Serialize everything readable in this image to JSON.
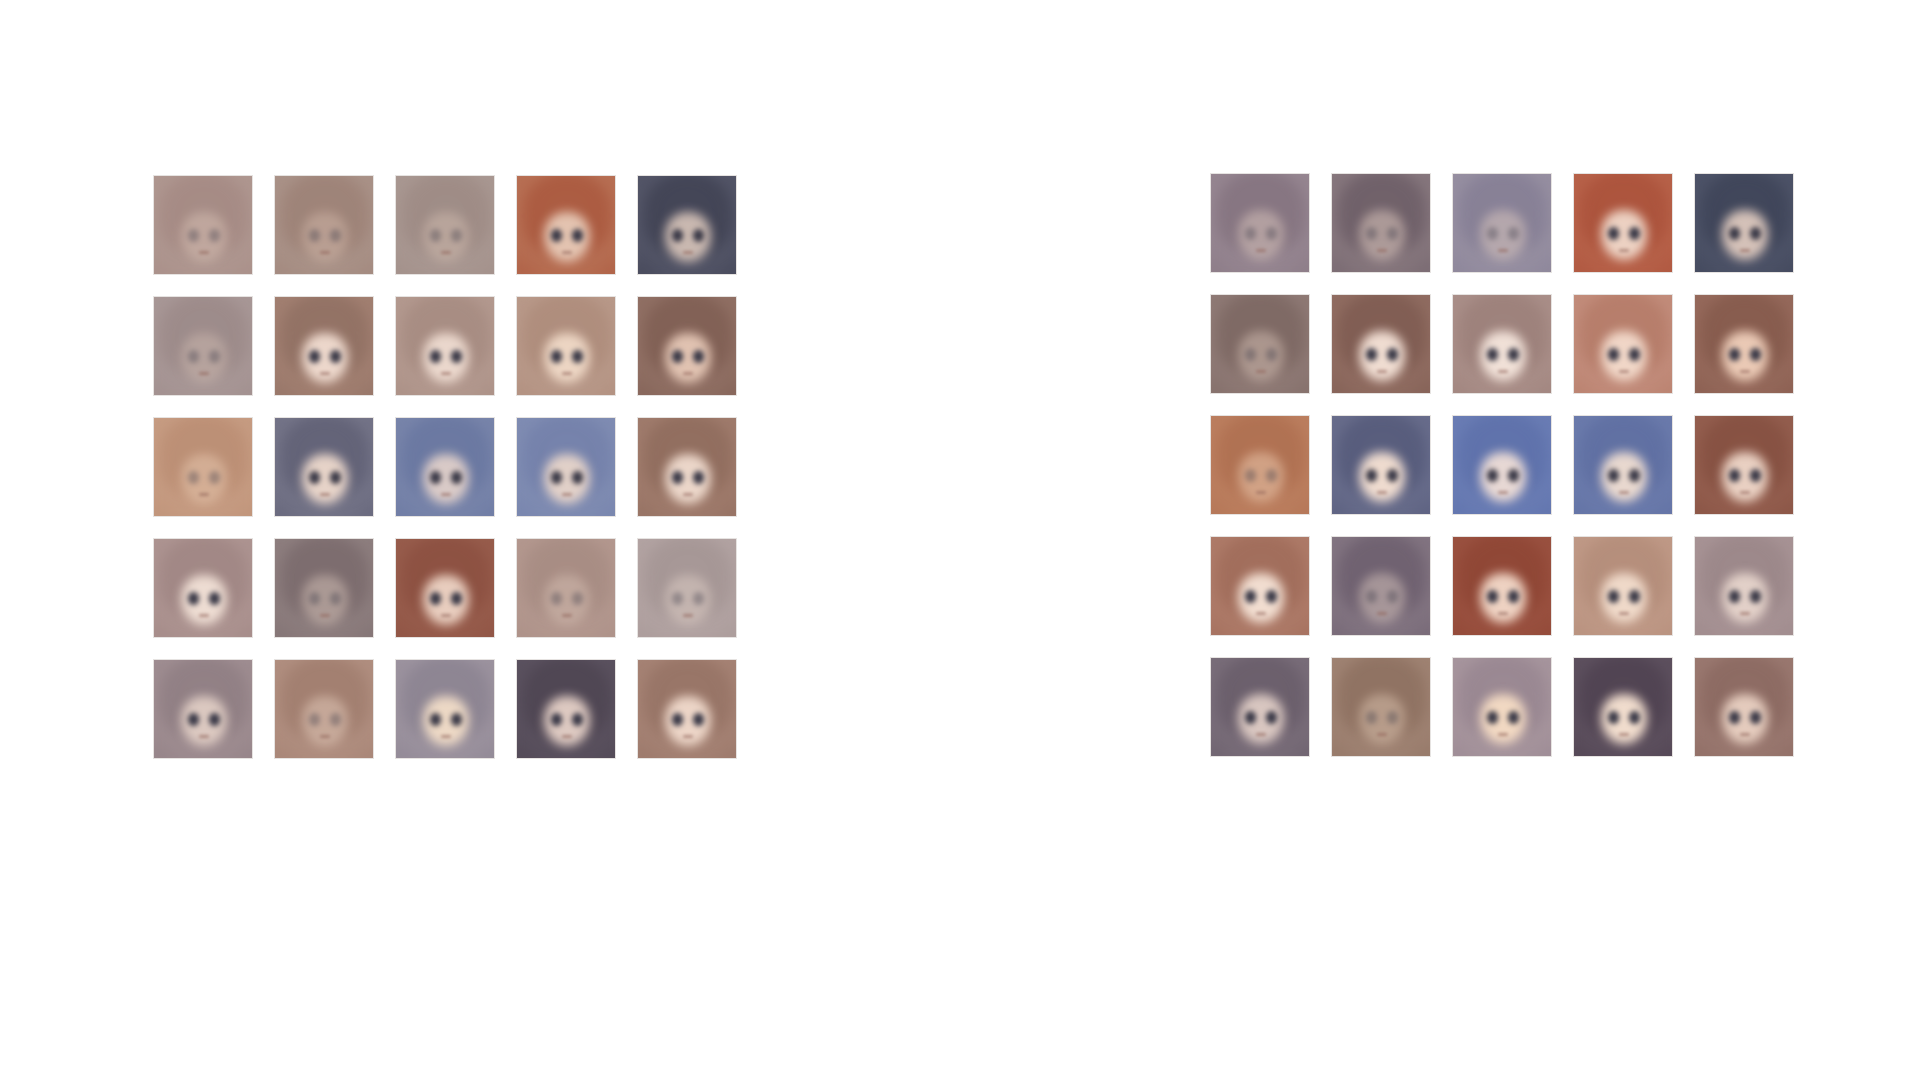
{
  "grids": [
    {
      "tiles": [
        {
          "bg": "#b9a59d",
          "hair": "#a68b85",
          "face": "#d4bdb1",
          "clear": false
        },
        {
          "bg": "#b7a49b",
          "hair": "#9e8378",
          "face": "#cdb3a5",
          "clear": false
        },
        {
          "bg": "#b4a59f",
          "hair": "#9f8c86",
          "face": "#cdb8ac",
          "clear": false
        },
        {
          "bg": "#c98e71",
          "hair": "#a9573d",
          "face": "#e3c3b0",
          "clear": true
        },
        {
          "bg": "#6d6f82",
          "hair": "#3f4152",
          "face": "#c9b8b0",
          "clear": true
        },
        {
          "bg": "#b5a6a5",
          "hair": "#9d8b8a",
          "face": "#c9b5ac",
          "clear": false
        },
        {
          "bg": "#b99484",
          "hair": "#8f6f62",
          "face": "#ecd7cb",
          "clear": true
        },
        {
          "bg": "#c4aba1",
          "hair": "#a58a80",
          "face": "#ead7cc",
          "clear": true
        },
        {
          "bg": "#c6aa9c",
          "hair": "#ad8b7a",
          "face": "#ecd5c3",
          "clear": true
        },
        {
          "bg": "#a7877b",
          "hair": "#7e5d52",
          "face": "#e0c2b1",
          "clear": true
        },
        {
          "bg": "#d2ab92",
          "hair": "#bc8f75",
          "face": "#e6c6ad",
          "clear": false
        },
        {
          "bg": "#8e8ea0",
          "hair": "#5f5f74",
          "face": "#e6d3c8",
          "clear": true
        },
        {
          "bg": "#8c96b6",
          "hair": "#6876a0",
          "face": "#d9cac7",
          "clear": true
        },
        {
          "bg": "#8f9bbc",
          "hair": "#7380aa",
          "face": "#e1d0c8",
          "clear": true
        },
        {
          "bg": "#b58f80",
          "hair": "#8e6b5c",
          "face": "#ebd6c9",
          "clear": true
        },
        {
          "bg": "#bea6a2",
          "hair": "#9f8583",
          "face": "#eddcd2",
          "clear": true
        },
        {
          "bg": "#a39593",
          "hair": "#7c6c6e",
          "face": "#d0bdb3",
          "clear": false
        },
        {
          "bg": "#a66d5b",
          "hair": "#8b4f40",
          "face": "#e8cdbe",
          "clear": true
        },
        {
          "bg": "#c0a49b",
          "hair": "#a88d84",
          "face": "#d2bbaf",
          "clear": false
        },
        {
          "bg": "#c0b1b0",
          "hair": "#a69796",
          "face": "#dbcbc3",
          "clear": false
        },
        {
          "bg": "#b3a0a3",
          "hair": "#8e7d82",
          "face": "#dbc8c0",
          "clear": true
        },
        {
          "bg": "#c1a193",
          "hair": "#a27f70",
          "face": "#e1c8b8",
          "clear": false
        },
        {
          "bg": "#b2a7b0",
          "hair": "#8a8290",
          "face": "#ecd8c5",
          "clear": true
        },
        {
          "bg": "#6b6270",
          "hair": "#4d4451",
          "face": "#ddc9c1",
          "clear": true
        },
        {
          "bg": "#b99688",
          "hair": "#957264",
          "face": "#ecd5c7",
          "clear": true
        }
      ]
    },
    {
      "tiles": [
        {
          "bg": "#a99aa4",
          "hair": "#867581",
          "face": "#d6c2ba",
          "clear": false
        },
        {
          "bg": "#a49497",
          "hair": "#6f6069",
          "face": "#dcc7bd",
          "clear": false
        },
        {
          "bg": "#a9a1ae",
          "hair": "#878096",
          "face": "#d9c6be",
          "clear": false
        },
        {
          "bg": "#c7775d",
          "hair": "#aa513a",
          "face": "#ecd1c2",
          "clear": true
        },
        {
          "bg": "#62677d",
          "hair": "#3d4357",
          "face": "#d4c1b8",
          "clear": true
        },
        {
          "bg": "#a38e8a",
          "hair": "#7e6964",
          "face": "#cfbaaf",
          "clear": false
        },
        {
          "bg": "#a88377",
          "hair": "#7d5a50",
          "face": "#efdcd1",
          "clear": true
        },
        {
          "bg": "#bba19b",
          "hair": "#9b7f79",
          "face": "#f0e0d7",
          "clear": true
        },
        {
          "bg": "#d3a394",
          "hair": "#b47a67",
          "face": "#f0d6c7",
          "clear": true
        },
        {
          "bg": "#ab7e70",
          "hair": "#84594b",
          "face": "#eac9b5",
          "clear": true
        },
        {
          "bg": "#c98f6f",
          "hair": "#b07152",
          "face": "#ebc8ad",
          "clear": false
        },
        {
          "bg": "#8185a2",
          "hair": "#545979",
          "face": "#eedbcf",
          "clear": true
        },
        {
          "bg": "#7a8cc0",
          "hair": "#5d70aa",
          "face": "#e7d8d4",
          "clear": true
        },
        {
          "bg": "#7b8ab8",
          "hair": "#5e6ea1",
          "face": "#e8d8cf",
          "clear": true
        },
        {
          "bg": "#a77161",
          "hair": "#844f40",
          "face": "#e9d0c2",
          "clear": true
        },
        {
          "bg": "#c08e7c",
          "hair": "#9f6b59",
          "face": "#f1ddd0",
          "clear": true
        },
        {
          "bg": "#9b8d97",
          "hair": "#6f6170",
          "face": "#d1bfb8",
          "clear": false
        },
        {
          "bg": "#a8604f",
          "hair": "#8e4534",
          "face": "#eed2c2",
          "clear": true
        },
        {
          "bg": "#cea997",
          "hair": "#b38c79",
          "face": "#efd9c9",
          "clear": true
        },
        {
          "bg": "#b7a2a4",
          "hair": "#9a8688",
          "face": "#e2d0c8",
          "clear": true
        },
        {
          "bg": "#8e828d",
          "hair": "#685c69",
          "face": "#d8c6c0",
          "clear": true
        },
        {
          "bg": "#b39787",
          "hair": "#8f7262",
          "face": "#d6bda9",
          "clear": false
        },
        {
          "bg": "#b9a8ac",
          "hair": "#978590",
          "face": "#f1d8c2",
          "clear": true
        },
        {
          "bg": "#706370",
          "hair": "#4e4150",
          "face": "#f0dccd",
          "clear": true
        },
        {
          "bg": "#ad8c83",
          "hair": "#8a6860",
          "face": "#e4cbbd",
          "clear": true
        }
      ]
    }
  ]
}
